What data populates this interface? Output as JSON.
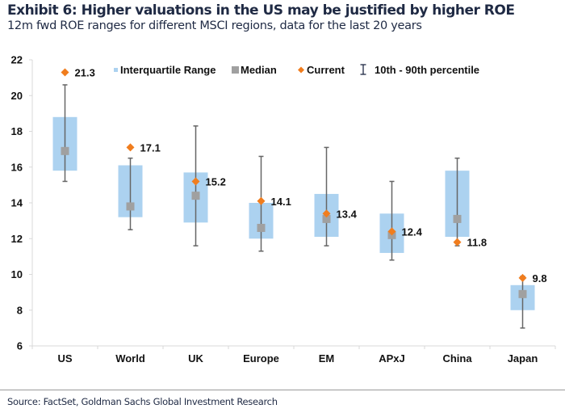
{
  "header": {
    "title": "Exhibit 6: Higher valuations in the US may be justified by higher ROE",
    "subtitle": "12m fwd ROE ranges for different MSCI regions, data for the last 20 years"
  },
  "footer": {
    "source": "Source: FactSet, Goldman Sachs Global Investment Research"
  },
  "colors": {
    "iqr": "#acd2f0",
    "median": "#a0a0a0",
    "current": "#f07d1e",
    "whisker": "#666666",
    "axis": "#d9d9d9"
  },
  "chart_data": {
    "type": "box",
    "title": "Exhibit 6: Higher valuations in the US may be justified by higher ROE",
    "subtitle": "12m fwd ROE ranges for different MSCI regions, data for the last 20 years",
    "xlabel": "",
    "ylabel": "",
    "ylim": [
      6,
      22
    ],
    "yticks": [
      6,
      8,
      10,
      12,
      14,
      16,
      18,
      20,
      22
    ],
    "grid": false,
    "legend_position": "top",
    "legend": [
      {
        "key": "iqr",
        "label": "Interquartile Range"
      },
      {
        "key": "median",
        "label": "Median"
      },
      {
        "key": "current",
        "label": "Current"
      },
      {
        "key": "range",
        "label": "10th - 90th percentile"
      }
    ],
    "categories": [
      "US",
      "World",
      "UK",
      "Europe",
      "EM",
      "APxJ",
      "China",
      "Japan"
    ],
    "series": [
      {
        "name": "10th percentile",
        "values": [
          15.2,
          12.5,
          11.6,
          11.3,
          11.6,
          10.8,
          11.6,
          7.0
        ]
      },
      {
        "name": "25th percentile",
        "values": [
          15.8,
          13.2,
          12.9,
          12.0,
          12.1,
          11.2,
          12.1,
          8.0
        ]
      },
      {
        "name": "Median",
        "values": [
          16.9,
          13.8,
          14.4,
          12.6,
          13.1,
          12.2,
          13.1,
          8.9
        ]
      },
      {
        "name": "75th percentile",
        "values": [
          18.8,
          16.1,
          15.7,
          14.0,
          14.5,
          13.4,
          15.8,
          9.4
        ]
      },
      {
        "name": "90th percentile",
        "values": [
          20.6,
          16.5,
          18.3,
          16.6,
          17.1,
          15.2,
          16.5,
          9.9
        ]
      },
      {
        "name": "Current",
        "values": [
          21.3,
          17.1,
          15.2,
          14.1,
          13.4,
          12.4,
          11.8,
          9.8
        ]
      }
    ],
    "current_labels": [
      "21.3",
      "17.1",
      "15.2",
      "14.1",
      "13.4",
      "12.4",
      "11.8",
      "9.8"
    ]
  }
}
